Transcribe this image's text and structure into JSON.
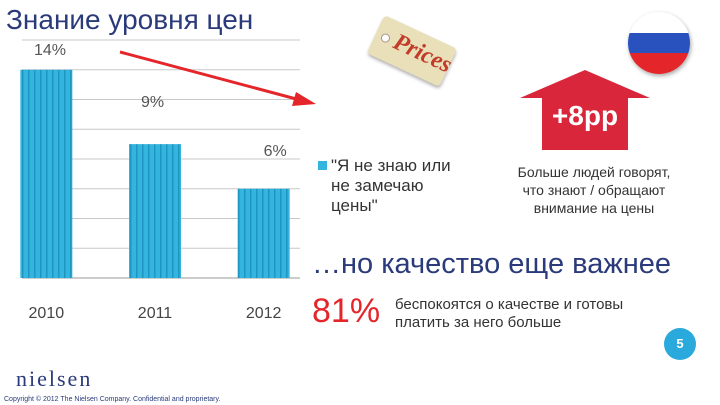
{
  "title": "Знание уровня цен",
  "chart_data": {
    "type": "bar",
    "categories": [
      "2010",
      "2011",
      "2012"
    ],
    "series": [
      {
        "name": "\"Я не знаю или не замечаю цены\"",
        "values": [
          14,
          9,
          6
        ],
        "labels": [
          "14%",
          "9%",
          "6%"
        ]
      }
    ],
    "ylim": [
      0,
      16
    ],
    "grid": true,
    "legend": "right",
    "colors": {
      "bar": "#33b5df",
      "bar_stripe": "#1f95c2",
      "trend_arrow": "#e4262b"
    }
  },
  "tag": {
    "text": "Prices",
    "icon": "price-tag-icon"
  },
  "flag": {
    "icon": "russia-flag-icon",
    "colors": [
      "#ffffff",
      "#2a52be",
      "#e4262b"
    ]
  },
  "increase": {
    "label": "+8pp",
    "color": "#d9263a"
  },
  "more_people": "Больше людей говорят, что знают / обращают внимание на цены",
  "quality": {
    "headline": "…но качество еще важнее",
    "percent": "81%",
    "description": "беспокоятся о качестве и готовы платить за него больше"
  },
  "footer": {
    "logo": "nielsen",
    "copyright": "Copyright © 2012 The Nielsen Company. Confidential and proprietary.",
    "page": "5"
  }
}
